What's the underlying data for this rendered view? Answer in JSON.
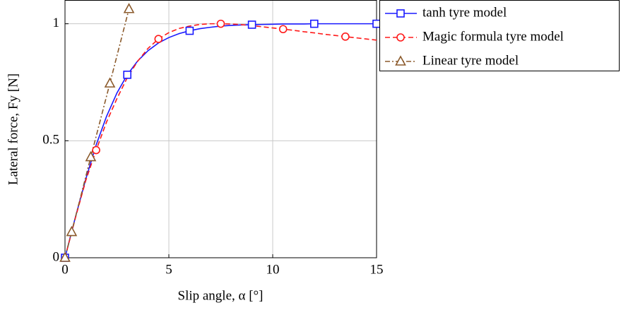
{
  "chart_data": {
    "type": "line",
    "x_label": "Slip angle, α [°]",
    "y_label": "Lateral force, Fy [N]",
    "xlim": [
      0,
      15
    ],
    "xticks": [
      0,
      5,
      10,
      15
    ],
    "ylim": [
      0,
      1.1
    ],
    "yticks": [
      0,
      0.5,
      1
    ],
    "grid": true,
    "legend": "outside-right",
    "series": [
      {
        "name": "tanh tyre model",
        "color": "#1a1aff",
        "dash": "solid",
        "marker": "square",
        "mark_every": 6,
        "mark_offset": 0,
        "x": [
          0,
          0.5,
          1,
          1.5,
          2,
          2.5,
          3,
          3.5,
          4,
          4.5,
          5,
          5.5,
          6,
          6.5,
          7,
          7.5,
          8,
          8.5,
          9,
          9.5,
          10,
          10.5,
          11,
          11.5,
          12,
          12.5,
          13,
          13.5,
          14,
          14.5,
          15
        ],
        "values": [
          0,
          0.173,
          0.336,
          0.482,
          0.604,
          0.704,
          0.782,
          0.841,
          0.885,
          0.918,
          0.941,
          0.958,
          0.97,
          0.979,
          0.985,
          0.99,
          0.993,
          0.995,
          0.996,
          0.997,
          0.998,
          0.999,
          0.999,
          0.999,
          1,
          1,
          1,
          1,
          1,
          1,
          1
        ]
      },
      {
        "name": "Magic formula tyre model",
        "color": "#ff1a1a",
        "dash": "dashed",
        "marker": "circle",
        "mark_every": 6,
        "mark_offset": 3,
        "x": [
          0,
          0.5,
          1,
          1.5,
          2,
          2.5,
          3,
          3.5,
          4,
          4.5,
          5,
          5.5,
          6,
          6.5,
          7,
          7.5,
          8,
          8.5,
          9,
          9.5,
          10,
          10.5,
          11,
          11.5,
          12,
          12.5,
          13,
          13.5,
          14,
          14.5,
          15
        ],
        "values": [
          0,
          0.17,
          0.33,
          0.46,
          0.58,
          0.68,
          0.77,
          0.84,
          0.895,
          0.935,
          0.962,
          0.98,
          0.99,
          0.997,
          1,
          1,
          0.999,
          0.996,
          0.992,
          0.987,
          0.982,
          0.977,
          0.972,
          0.966,
          0.961,
          0.955,
          0.95,
          0.945,
          0.94,
          0.935,
          0.93
        ]
      },
      {
        "name": "Linear tyre model",
        "color": "#8b5a2b",
        "dash": "dashdot",
        "marker": "triangle",
        "mark_every": 1,
        "mark_offset": 0,
        "x": [
          0,
          0.32,
          1.24,
          2.16,
          3.08
        ],
        "values": [
          0,
          0.11,
          0.43,
          0.745,
          1.063
        ]
      }
    ]
  }
}
